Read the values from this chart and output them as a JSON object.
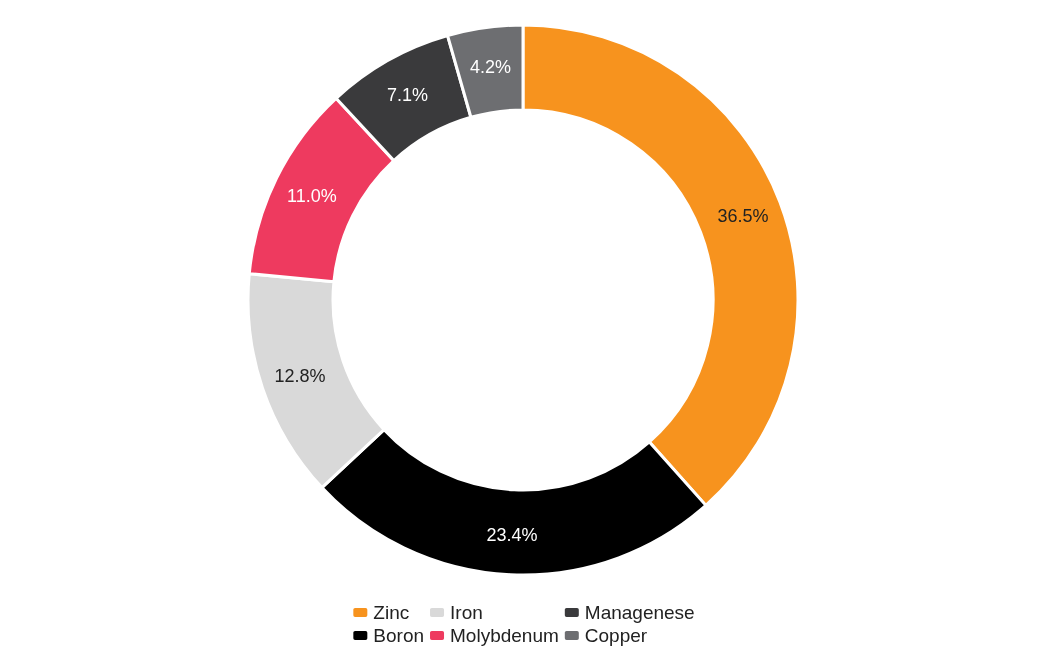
{
  "chart_data": {
    "type": "donut",
    "categories": [
      "Zinc",
      "Boron",
      "Iron",
      "Molybdenum",
      "Managenese",
      "Copper"
    ],
    "values": [
      36.5,
      23.4,
      12.8,
      11.0,
      7.1,
      4.2
    ],
    "value_labels": [
      "36.5%",
      "23.4%",
      "12.8%",
      "11.0%",
      "7.1%",
      "4.2%"
    ],
    "colors": [
      "#f7931e",
      "#000000",
      "#d9d9d9",
      "#ee3a5f",
      "#3a3a3c",
      "#6d6e71"
    ],
    "legend": "bottom"
  }
}
